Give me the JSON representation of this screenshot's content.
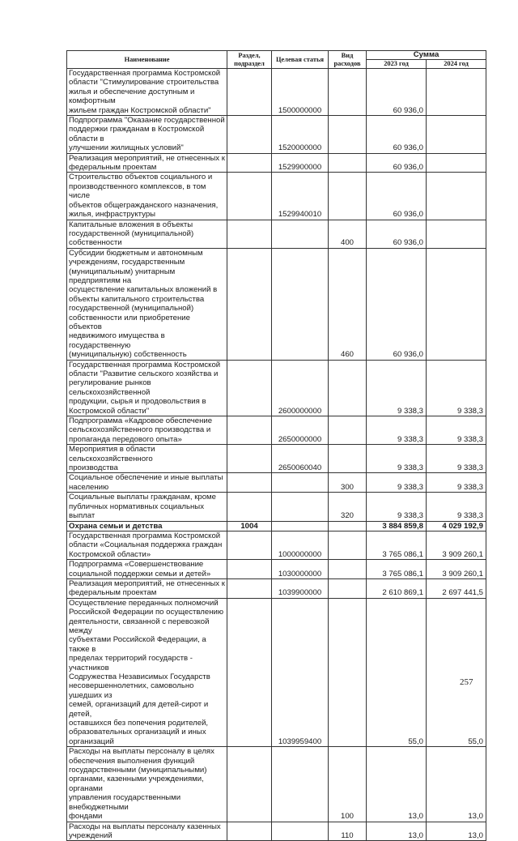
{
  "header": {
    "name": "Наименование",
    "razdel": "Раздел, подраздел",
    "celevaya": "Целевая статья",
    "vid": "Вид расходов",
    "summa": "Сумма",
    "y2023": "2023 год",
    "y2024": "2024 год"
  },
  "rows": [
    {
      "name": "Государственная программа Костромской\nобласти \"Стимулирование строительства\nжилья и обеспечение доступным и комфортным\nжильем граждан Костромской области\"",
      "razdel": "",
      "cs": "1500000000",
      "vr": "",
      "s2023": "60 936,0",
      "s2024": ""
    },
    {
      "name": "Подпрограмма \"Оказание государственной\nподдержки гражданам в Костромской области в\nулучшении жилищных условий\"",
      "razdel": "",
      "cs": "1520000000",
      "vr": "",
      "s2023": "60 936,0",
      "s2024": ""
    },
    {
      "name": "Реализация мероприятий, не отнесенных к\nфедеральным проектам",
      "razdel": "",
      "cs": "1529900000",
      "vr": "",
      "s2023": "60 936,0",
      "s2024": ""
    },
    {
      "name": "Строительство объектов социального и\nпроизводственного комплексов, в том числе\nобъектов общегражданского назначения,\nжилья, инфраструктуры",
      "razdel": "",
      "cs": "1529940010",
      "vr": "",
      "s2023": "60 936,0",
      "s2024": ""
    },
    {
      "name": "Капитальные вложения в объекты\nгосударственной (муниципальной)\nсобственности",
      "razdel": "",
      "cs": "",
      "vr": "400",
      "s2023": "60 936,0",
      "s2024": ""
    },
    {
      "name": "Субсидии бюджетным и автономным\nучреждениям, государственным\n(муниципальным) унитарным предприятиям на\nосуществление капитальных вложений в\nобъекты капитального строительства\nгосударственной (муниципальной)\nсобственности или приобретение объектов\nнедвижимого имущества в государственную\n(муниципальную) собственность",
      "razdel": "",
      "cs": "",
      "vr": "460",
      "s2023": "60 936,0",
      "s2024": ""
    },
    {
      "name": "Государственная программа Костромской\nобласти \"Развитие сельского хозяйства и\nрегулирование рынков сельскохозяйственной\nпродукции, сырья и продовольствия в\nКостромской области\"",
      "razdel": "",
      "cs": "2600000000",
      "vr": "",
      "s2023": "9 338,3",
      "s2024": "9 338,3"
    },
    {
      "name": "Подпрограмма «Кадровое обеспечение\nсельскохозяйственного производства и\nпропаганда передового опыта»",
      "razdel": "",
      "cs": "2650000000",
      "vr": "",
      "s2023": "9 338,3",
      "s2024": "9 338,3"
    },
    {
      "name": "Мероприятия в области сельскохозяйственного\nпроизводства",
      "razdel": "",
      "cs": "2650060040",
      "vr": "",
      "s2023": "9 338,3",
      "s2024": "9 338,3"
    },
    {
      "name": "Социальное обеспечение и иные выплаты\nнаселению",
      "razdel": "",
      "cs": "",
      "vr": "300",
      "s2023": "9 338,3",
      "s2024": "9 338,3"
    },
    {
      "name": "Социальные выплаты гражданам, кроме\nпубличных нормативных социальных выплат",
      "razdel": "",
      "cs": "",
      "vr": "320",
      "s2023": "9 338,3",
      "s2024": "9 338,3"
    },
    {
      "name": "Охрана семьи и детства",
      "razdel": "1004",
      "cs": "",
      "vr": "",
      "s2023": "3 884 859,8",
      "s2024": "4 029 192,9",
      "bold": true
    },
    {
      "name": "Государственная программа Костромской\nобласти «Социальная поддержка граждан\nКостромской области»",
      "razdel": "",
      "cs": "1000000000",
      "vr": "",
      "s2023": "3 765 086,1",
      "s2024": "3 909 260,1"
    },
    {
      "name": "Подпрограмма «Совершенствование\nсоциальной поддержки семьи и детей»",
      "razdel": "",
      "cs": "1030000000",
      "vr": "",
      "s2023": "3 765 086,1",
      "s2024": "3 909 260,1"
    },
    {
      "name": "Реализация мероприятий, не отнесенных к\nфедеральным проектам",
      "razdel": "",
      "cs": "1039900000",
      "vr": "",
      "s2023": "2 610 869,1",
      "s2024": "2 697 441,5"
    },
    {
      "name": "Осуществление переданных полномочий\nРоссийской Федерации по осуществлению\nдеятельности, связанной с перевозкой между\nсубъектами Российской Федерации, а также в\nпределах территорий государств - участников\nСодружества Независимых Государств\nнесовершеннолетних, самовольно ушедших из\nсемей, организаций для детей-сирот и детей,\nоставшихся без попечения родителей,\nобразовательных организаций и иных\nорганизаций",
      "razdel": "",
      "cs": "1039959400",
      "vr": "",
      "s2023": "55,0",
      "s2024": "55,0"
    },
    {
      "name": "Расходы на выплаты персоналу в целях\nобеспечения выполнения функций\nгосударственными (муниципальными)\nорганами, казенными учреждениями, органами\nуправления государственными внебюджетными\nфондами",
      "razdel": "",
      "cs": "",
      "vr": "100",
      "s2023": "13,0",
      "s2024": "13,0"
    },
    {
      "name": "Расходы на выплаты персоналу казенных\nучреждений",
      "razdel": "",
      "cs": "",
      "vr": "110",
      "s2023": "13,0",
      "s2024": "13,0"
    }
  ],
  "page_number": "257"
}
